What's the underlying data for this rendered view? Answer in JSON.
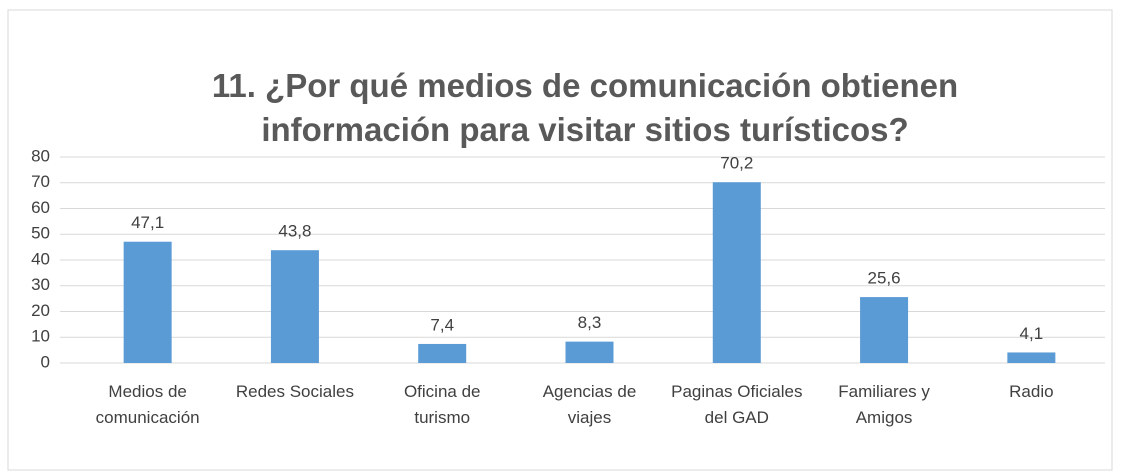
{
  "chart_data": {
    "type": "bar",
    "title": "11. ¿Por qué medios de comunicación obtienen información para visitar sitios turísticos?",
    "categories": [
      "Medios de comunicación",
      "Redes Sociales",
      "Oficina de turismo",
      "Agencias de viajes",
      "Paginas Oficiales del GAD",
      "Familiares y Amigos",
      "Radio"
    ],
    "values": [
      47.1,
      43.8,
      7.4,
      8.3,
      70.2,
      25.6,
      4.1
    ],
    "value_labels": [
      "47,1",
      "43,8",
      "7,4",
      "8,3",
      "70,2",
      "25,6",
      "4,1"
    ],
    "color": "#5b9bd5",
    "ylim": [
      0,
      80
    ],
    "yticks": [
      0,
      10,
      20,
      30,
      40,
      50,
      60,
      70,
      80
    ],
    "grid": true
  }
}
